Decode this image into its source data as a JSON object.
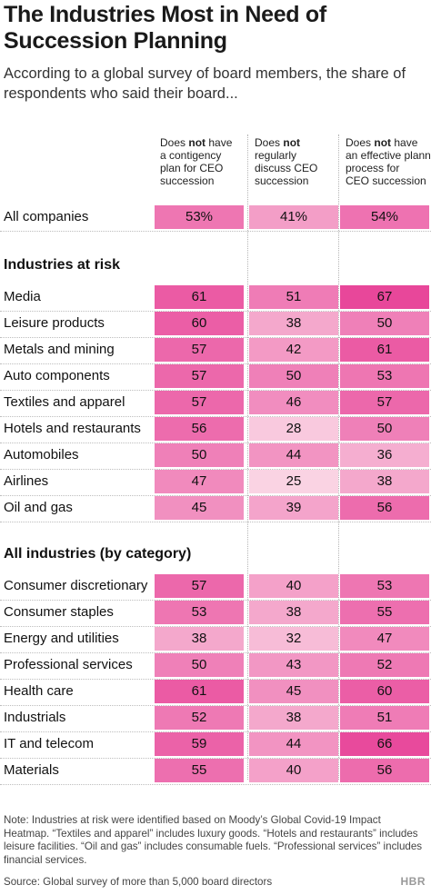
{
  "title": "The Industries Most in Need of Succession Planning",
  "subtitle": "According to a global survey of board members, the share of respondents who said their board...",
  "chart_data": {
    "type": "heatmap",
    "columns": [
      {
        "pre": "Does ",
        "bold": "not",
        "post": " have",
        "rest": [
          "a contigency",
          "plan for CEO",
          "succession"
        ]
      },
      {
        "pre": "Does ",
        "bold": "not",
        "post": "",
        "rest": [
          "regularly",
          "discuss CEO",
          "succession"
        ]
      },
      {
        "pre": "Does ",
        "bold": "not",
        "post": " have",
        "rest": [
          "an effective planning",
          "process for",
          "CEO succession"
        ]
      }
    ],
    "overall": {
      "label": "All companies",
      "values": [
        "53%",
        "41%",
        "54%"
      ]
    },
    "sections": [
      {
        "title": "Industries at risk",
        "rows": [
          {
            "label": "Media",
            "values": [
              61,
              51,
              67
            ]
          },
          {
            "label": "Leisure products",
            "values": [
              60,
              38,
              50
            ]
          },
          {
            "label": "Metals and mining",
            "values": [
              57,
              42,
              61
            ]
          },
          {
            "label": "Auto components",
            "values": [
              57,
              50,
              53
            ]
          },
          {
            "label": "Textiles and apparel",
            "values": [
              57,
              46,
              57
            ]
          },
          {
            "label": "Hotels and restaurants",
            "values": [
              56,
              28,
              50
            ]
          },
          {
            "label": "Automobiles",
            "values": [
              50,
              44,
              36
            ]
          },
          {
            "label": "Airlines",
            "values": [
              47,
              25,
              38
            ]
          },
          {
            "label": "Oil and gas",
            "values": [
              45,
              39,
              56
            ]
          }
        ]
      },
      {
        "title": "All industries (by category)",
        "rows": [
          {
            "label": "Consumer discretionary",
            "values": [
              57,
              40,
              53
            ]
          },
          {
            "label": "Consumer staples",
            "values": [
              53,
              38,
              55
            ]
          },
          {
            "label": "Energy and utilities",
            "values": [
              38,
              32,
              47
            ]
          },
          {
            "label": "Professional services",
            "values": [
              50,
              43,
              52
            ]
          },
          {
            "label": "Health care",
            "values": [
              61,
              45,
              60
            ]
          },
          {
            "label": "Industrials",
            "values": [
              52,
              38,
              51
            ]
          },
          {
            "label": "IT and telecom",
            "values": [
              59,
              44,
              66
            ]
          },
          {
            "label": "Materials",
            "values": [
              55,
              40,
              56
            ]
          }
        ]
      }
    ],
    "color_scale": {
      "min": 25,
      "max": 67,
      "low": "#fad3e3",
      "high": "#e8479a"
    }
  },
  "note": "Note: Industries at risk were identified based on Moody’s Global Covid-19 Impact Heatmap. “Textiles and apparel” includes luxury goods. “Hotels and restaurants” includes leisure facilities. “Oil and gas” includes consumable fuels. “Professional services” includes financial services.",
  "source": "Source: Global survey of more than 5,000 board directors",
  "logo": "HBR"
}
